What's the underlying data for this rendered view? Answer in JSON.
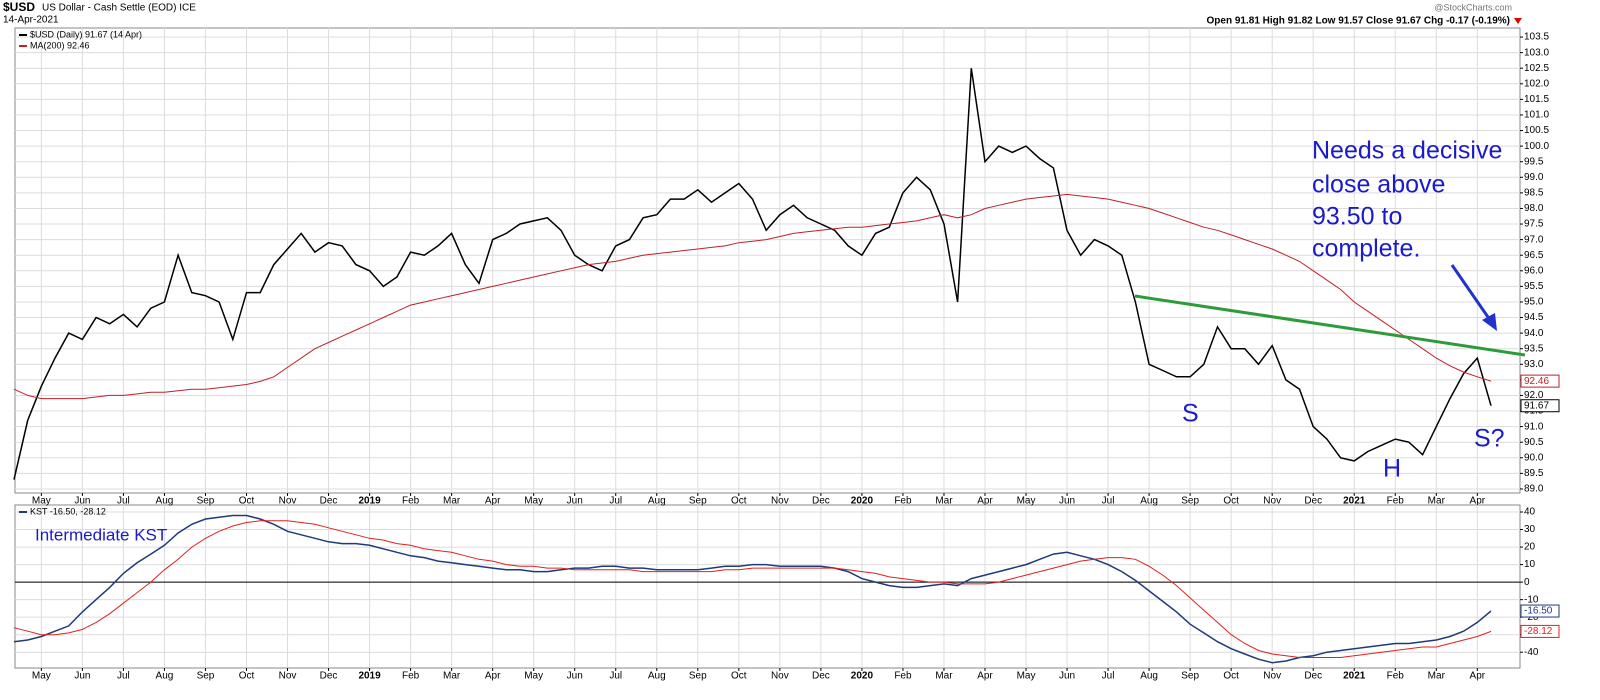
{
  "header": {
    "symbol": "$USD",
    "description": "US Dollar - Cash Settle (EOD) ICE",
    "date": "14-Apr-2021",
    "ohlc": "Open 91.81 High 91.82 Low 91.57 Close 91.67 Chg -0.17 (-0.19%)",
    "credit": "@StockCharts.com"
  },
  "annotations": {
    "note": [
      "Needs a decisive",
      "close above",
      "93.50 to",
      "complete."
    ],
    "left_shoulder": "S",
    "head": "H",
    "right_shoulder": "S?",
    "kst_title": "Intermediate KST"
  },
  "chart_data": [
    {
      "type": "line",
      "categories": [
        null,
        null,
        "May",
        null,
        null,
        "Jun",
        null,
        null,
        "Jul",
        null,
        null,
        "Aug",
        null,
        null,
        "Sep",
        null,
        null,
        "Oct",
        null,
        null,
        "Nov",
        null,
        null,
        "Dec",
        null,
        null,
        "2019",
        null,
        null,
        "Feb",
        null,
        null,
        "Mar",
        null,
        null,
        "Apr",
        null,
        null,
        "May",
        null,
        null,
        "Jun",
        null,
        null,
        "Jul",
        null,
        null,
        "Aug",
        null,
        null,
        "Sep",
        null,
        null,
        "Oct",
        null,
        null,
        "Nov",
        null,
        null,
        "Dec",
        null,
        null,
        "2020",
        null,
        null,
        "Feb",
        null,
        null,
        "Mar",
        null,
        null,
        "Apr",
        null,
        null,
        "May",
        null,
        null,
        "Jun",
        null,
        null,
        "Jul",
        null,
        null,
        "Aug",
        null,
        null,
        "Sep",
        null,
        null,
        "Oct",
        null,
        null,
        "Nov",
        null,
        null,
        "Dec",
        null,
        null,
        "2021",
        null,
        null,
        "Feb",
        null,
        null,
        "Mar",
        null,
        null,
        "Apr",
        null
      ],
      "series": [
        {
          "name": "$USD (Daily) 91.67 (14 Apr)",
          "color": "#000000",
          "values": [
            89.3,
            91.2,
            92.3,
            93.2,
            94.0,
            93.8,
            94.5,
            94.3,
            94.6,
            94.2,
            94.8,
            95.0,
            96.5,
            95.3,
            95.2,
            95.0,
            93.8,
            95.3,
            95.3,
            96.2,
            96.7,
            97.2,
            96.6,
            96.9,
            96.8,
            96.2,
            96.0,
            95.5,
            95.8,
            96.6,
            96.5,
            96.8,
            97.2,
            96.2,
            95.6,
            97.0,
            97.2,
            97.5,
            97.6,
            97.7,
            97.3,
            96.5,
            96.2,
            96.0,
            96.8,
            97.0,
            97.7,
            97.8,
            98.3,
            98.3,
            98.6,
            98.2,
            98.5,
            98.8,
            98.3,
            97.3,
            97.8,
            98.1,
            97.7,
            97.5,
            97.3,
            96.8,
            96.5,
            97.2,
            97.4,
            98.5,
            99.0,
            98.6,
            97.5,
            95.0,
            102.5,
            99.5,
            100.0,
            99.8,
            100.0,
            99.6,
            99.3,
            97.3,
            96.5,
            97.0,
            96.8,
            96.5,
            95.0,
            93.0,
            92.8,
            92.6,
            92.6,
            93.0,
            94.2,
            93.5,
            93.5,
            93.0,
            93.6,
            92.5,
            92.2,
            91.0,
            90.6,
            90.0,
            89.9,
            90.2,
            90.4,
            90.6,
            90.5,
            90.1,
            91.0,
            91.9,
            92.7,
            93.2,
            91.67
          ]
        },
        {
          "name": "MA(200) 92.46",
          "color": "#c0202a",
          "values": [
            92.2,
            92.0,
            91.9,
            91.9,
            91.9,
            91.9,
            91.95,
            92.0,
            92.0,
            92.05,
            92.1,
            92.1,
            92.15,
            92.2,
            92.2,
            92.25,
            92.3,
            92.35,
            92.45,
            92.6,
            92.9,
            93.2,
            93.5,
            93.7,
            93.9,
            94.1,
            94.3,
            94.5,
            94.7,
            94.9,
            95.0,
            95.1,
            95.2,
            95.3,
            95.4,
            95.5,
            95.6,
            95.7,
            95.8,
            95.9,
            96.0,
            96.1,
            96.2,
            96.25,
            96.3,
            96.4,
            96.5,
            96.55,
            96.6,
            96.65,
            96.7,
            96.75,
            96.8,
            96.9,
            96.95,
            97.0,
            97.1,
            97.2,
            97.25,
            97.3,
            97.35,
            97.4,
            97.4,
            97.45,
            97.5,
            97.55,
            97.6,
            97.7,
            97.8,
            97.7,
            97.8,
            98.0,
            98.1,
            98.2,
            98.3,
            98.35,
            98.4,
            98.45,
            98.4,
            98.35,
            98.3,
            98.2,
            98.1,
            98.0,
            97.85,
            97.7,
            97.55,
            97.4,
            97.3,
            97.15,
            97.0,
            96.85,
            96.7,
            96.5,
            96.3,
            96.0,
            95.7,
            95.4,
            95.0,
            94.7,
            94.4,
            94.1,
            93.8,
            93.5,
            93.2,
            92.95,
            92.75,
            92.6,
            92.46
          ]
        }
      ],
      "ylim": [
        88.87,
        103.79
      ],
      "yticks": [
        {
          "value": 89,
          "label": "89.0"
        },
        89.5,
        {
          "value": 90,
          "label": "90.0"
        },
        90.5,
        {
          "value": 91,
          "label": "91.0"
        },
        91.5,
        {
          "value": 92,
          "label": "92.0"
        },
        92.5,
        {
          "value": 93,
          "label": "93.0"
        },
        93.5,
        {
          "value": 94,
          "label": "94.0"
        },
        94.5,
        {
          "value": 95,
          "label": "95.0"
        },
        95.5,
        {
          "value": 96,
          "label": "96.0"
        },
        96.5,
        {
          "value": 97,
          "label": "97.0"
        },
        97.5,
        {
          "value": 98,
          "label": "98.0"
        },
        98.5,
        {
          "value": 99,
          "label": "99.0"
        },
        99.5,
        {
          "value": 100,
          "label": "100.0"
        },
        100.5,
        {
          "value": 101,
          "label": "101.0"
        },
        101.5,
        {
          "value": 102,
          "label": "102.0"
        },
        102.5,
        {
          "value": 103,
          "label": "103.0"
        },
        103.5
      ],
      "grid": true
    },
    {
      "type": "line",
      "legend": "KST -16.50, -28.12",
      "series": [
        {
          "color": "#1f3a7a",
          "value_label": "-16.50",
          "values": [
            -34,
            -33,
            -31,
            -28,
            -25,
            -17,
            -10,
            -3,
            5,
            11,
            16,
            21,
            28,
            33,
            36,
            37,
            38,
            38,
            36,
            33,
            29,
            27,
            25,
            23,
            22,
            22,
            21,
            19,
            17,
            15,
            14,
            12,
            11,
            10,
            9,
            8,
            7,
            7,
            6,
            6,
            7,
            8,
            8,
            9,
            9,
            8,
            8,
            7,
            7,
            7,
            7,
            8,
            9,
            9,
            10,
            10,
            9,
            9,
            9,
            9,
            8,
            6,
            2,
            0,
            -2,
            -3,
            -3,
            -2,
            -1,
            -2,
            2,
            4,
            6,
            8,
            10,
            13,
            16,
            17,
            15,
            13,
            10,
            6,
            1,
            -5,
            -11,
            -17,
            -24,
            -29,
            -34,
            -38,
            -41,
            -44,
            -46,
            -45,
            -43,
            -42,
            -40,
            -39,
            -38,
            -37,
            -36,
            -35,
            -35,
            -34,
            -33,
            -31,
            -28,
            -23,
            -16.5
          ]
        },
        {
          "color": "#e02020",
          "value_label": "-28.12",
          "values": [
            -26,
            -28,
            -30,
            -30,
            -29,
            -27,
            -23,
            -18,
            -12,
            -6,
            0,
            7,
            13,
            20,
            25,
            29,
            32,
            34,
            35,
            35,
            35,
            34,
            33,
            31,
            29,
            27,
            25,
            24,
            22,
            21,
            19,
            18,
            17,
            15,
            13,
            12,
            10,
            9,
            9,
            8,
            8,
            7,
            7,
            7,
            7,
            7,
            6,
            6,
            6,
            6,
            6,
            6,
            7,
            7,
            8,
            8,
            8,
            8,
            8,
            8,
            8,
            7,
            6,
            5,
            3,
            2,
            1,
            0,
            0,
            -1,
            -1,
            -1,
            0,
            2,
            4,
            6,
            8,
            10,
            12,
            13,
            14,
            14,
            13,
            9,
            4,
            -2,
            -9,
            -16,
            -23,
            -30,
            -35,
            -39,
            -41,
            -42,
            -43,
            -43,
            -43,
            -43,
            -42,
            -41,
            -40,
            -39,
            -38,
            -37,
            -37,
            -35,
            -33,
            -31,
            -28.12
          ]
        }
      ],
      "ylim": [
        -49,
        44
      ],
      "yticks": [
        40,
        30,
        20,
        10,
        0,
        -10,
        -20,
        -30,
        -40
      ],
      "grid": true,
      "zero_line": true
    }
  ]
}
